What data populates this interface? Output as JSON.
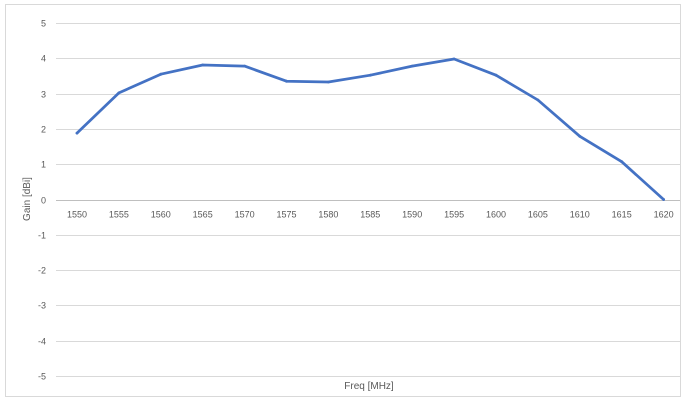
{
  "chart_data": {
    "type": "line",
    "title": "",
    "xlabel": "Freq [MHz]",
    "ylabel": "Gain [dBi]",
    "ylim": [
      -5,
      5
    ],
    "y_ticks": [
      5,
      4,
      3,
      2,
      1,
      0,
      -1,
      -2,
      -3,
      -4,
      -5
    ],
    "grid": true,
    "legend": "none",
    "x": [
      "1550",
      "1555",
      "1560",
      "1565",
      "1570",
      "1575",
      "1580",
      "1585",
      "1590",
      "1595",
      "1600",
      "1605",
      "1610",
      "1615",
      "1620"
    ],
    "series": [
      {
        "color": "#4472c4",
        "values": [
          1.88,
          3.02,
          3.55,
          3.81,
          3.78,
          3.35,
          3.33,
          3.52,
          3.78,
          3.98,
          3.52,
          2.82,
          1.79,
          1.07,
          0.0
        ]
      }
    ]
  }
}
